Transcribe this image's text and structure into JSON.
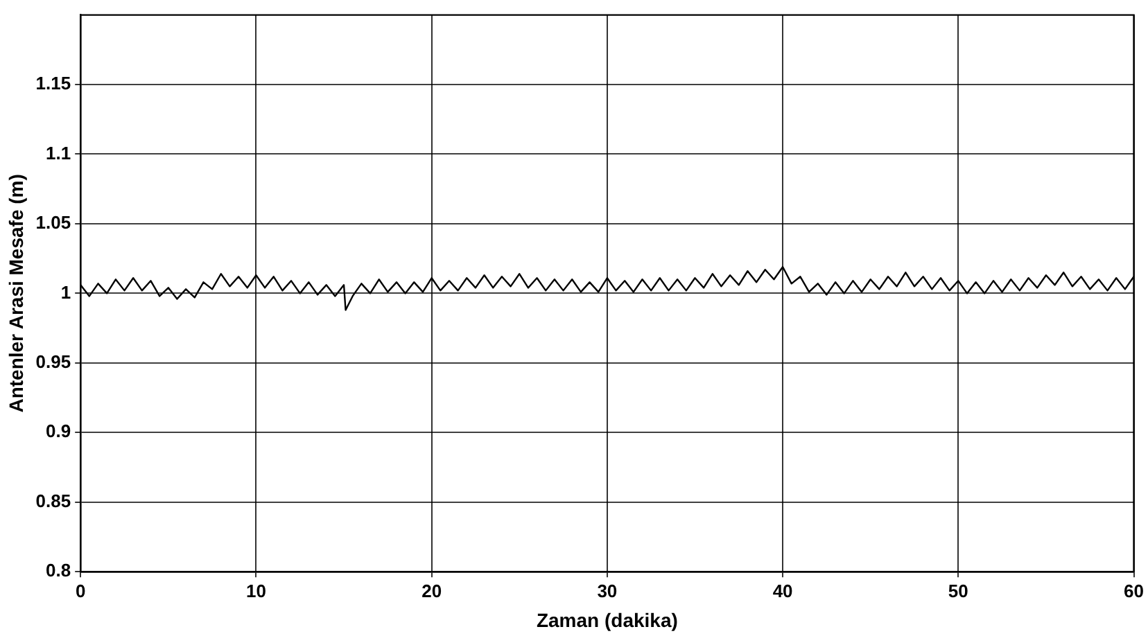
{
  "chart_data": {
    "type": "line",
    "xlabel": "Zaman (dakika)",
    "ylabel": "Antenler Arasi Mesafe (m)",
    "x": [
      0,
      0.5,
      1,
      1.5,
      2,
      2.5,
      3,
      3.5,
      4,
      4.5,
      5,
      5.5,
      6,
      6.5,
      7,
      7.5,
      8,
      8.5,
      9,
      9.5,
      10,
      10.5,
      11,
      11.5,
      12,
      12.5,
      13,
      13.5,
      14,
      14.5,
      15,
      15.1,
      15.5,
      16,
      16.5,
      17,
      17.5,
      18,
      18.5,
      19,
      19.5,
      20,
      20.5,
      21,
      21.5,
      22,
      22.5,
      23,
      23.5,
      24,
      24.5,
      25,
      25.5,
      26,
      26.5,
      27,
      27.5,
      28,
      28.5,
      29,
      29.5,
      30,
      30.5,
      31,
      31.5,
      32,
      32.5,
      33,
      33.5,
      34,
      34.5,
      35,
      35.5,
      36,
      36.5,
      37,
      37.5,
      38,
      38.5,
      39,
      39.5,
      40,
      40.5,
      41,
      41.5,
      42,
      42.5,
      43,
      43.5,
      44,
      44.5,
      45,
      45.5,
      46,
      46.5,
      47,
      47.5,
      48,
      48.5,
      49,
      49.5,
      50,
      50.5,
      51,
      51.5,
      52,
      52.5,
      53,
      53.5,
      54,
      54.5,
      55,
      55.5,
      56,
      56.5,
      57,
      57.5,
      58,
      58.5,
      59,
      59.5,
      60
    ],
    "series": [
      {
        "color": "#000000",
        "values": [
          1.006,
          0.998,
          1.007,
          1.0,
          1.01,
          1.002,
          1.011,
          1.002,
          1.009,
          0.998,
          1.004,
          0.996,
          1.003,
          0.997,
          1.008,
          1.003,
          1.014,
          1.005,
          1.012,
          1.004,
          1.013,
          1.004,
          1.012,
          1.002,
          1.009,
          1.0,
          1.008,
          0.999,
          1.006,
          0.998,
          1.006,
          0.988,
          0.998,
          1.007,
          1.0,
          1.01,
          1.001,
          1.008,
          1.0,
          1.008,
          1.001,
          1.011,
          1.002,
          1.009,
          1.002,
          1.011,
          1.004,
          1.013,
          1.004,
          1.012,
          1.005,
          1.014,
          1.004,
          1.011,
          1.002,
          1.01,
          1.002,
          1.01,
          1.001,
          1.008,
          1.001,
          1.011,
          1.002,
          1.009,
          1.001,
          1.01,
          1.002,
          1.011,
          1.002,
          1.01,
          1.002,
          1.011,
          1.004,
          1.014,
          1.005,
          1.013,
          1.006,
          1.016,
          1.008,
          1.017,
          1.01,
          1.019,
          1.007,
          1.012,
          1.001,
          1.007,
          0.999,
          1.008,
          1.0,
          1.009,
          1.001,
          1.01,
          1.003,
          1.012,
          1.005,
          1.015,
          1.005,
          1.012,
          1.003,
          1.011,
          1.002,
          1.009,
          1.0,
          1.008,
          1.0,
          1.009,
          1.001,
          1.01,
          1.002,
          1.011,
          1.004,
          1.013,
          1.006,
          1.015,
          1.005,
          1.012,
          1.003,
          1.01,
          1.002,
          1.011,
          1.003,
          1.012
        ]
      }
    ],
    "xlim": [
      0,
      60
    ],
    "xticks": [
      0,
      10,
      20,
      30,
      40,
      50,
      60
    ],
    "ylim": [
      0.8,
      1.2
    ],
    "yticks": [
      0.8,
      0.85,
      0.9,
      0.95,
      1,
      1.05,
      1.1,
      1.15
    ],
    "grid": true,
    "legend": false,
    "marker": "none",
    "line_style": "solid"
  }
}
